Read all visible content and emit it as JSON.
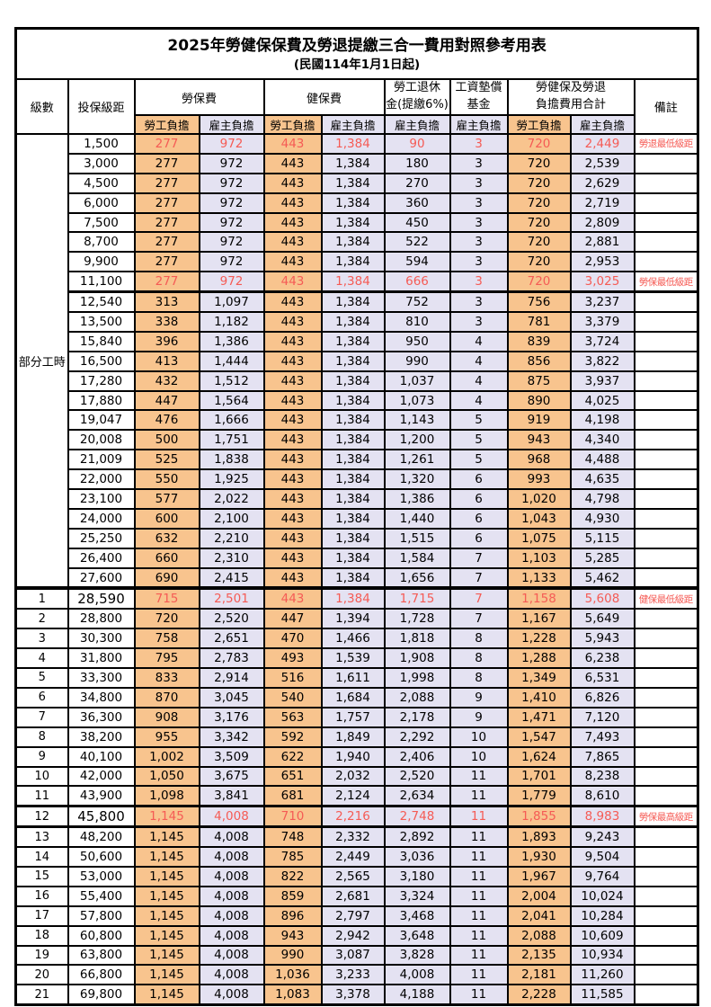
{
  "title": "2025年勞健保保費及勞退提繳三合一費用對照參考用表",
  "subtitle": "(民國114年1月1日起)",
  "colors": {
    "employee_column_bg": "#F8C48E",
    "employer_column_bg": "#E4E2F2",
    "highlight_red": "#F55B55",
    "border": "#000000"
  },
  "header": {
    "level": "級數",
    "bracket": "投保級距",
    "labor_insurance": "勞保費",
    "health_insurance": "健保費",
    "pension_line1": "勞工退休",
    "pension_line2": "金(提繳6%)",
    "wage_fund_line1": "工資墊償",
    "wage_fund_line2": "基金",
    "total_line1": "勞健保及勞退",
    "total_line2": "負擔費用合計",
    "remark": "備註",
    "employee": "勞工負擔",
    "employer": "雇主負擔"
  },
  "value_columns": [
    "labor-employee",
    "labor-employer",
    "health-employee",
    "health-employer",
    "pension-employer",
    "wage-fund-employer",
    "total-employee",
    "total-employer"
  ],
  "rows": [
    {
      "level": "部分工時",
      "levelSpan": 23,
      "bracket": "1,500",
      "v": [
        "277",
        "972",
        "443",
        "1,384",
        "90",
        "3",
        "720",
        "2,449"
      ],
      "remark": "勞退最低級距",
      "red": true
    },
    {
      "bracket": "3,000",
      "v": [
        "277",
        "972",
        "443",
        "1,384",
        "180",
        "3",
        "720",
        "2,539"
      ]
    },
    {
      "bracket": "4,500",
      "v": [
        "277",
        "972",
        "443",
        "1,384",
        "270",
        "3",
        "720",
        "2,629"
      ]
    },
    {
      "bracket": "6,000",
      "v": [
        "277",
        "972",
        "443",
        "1,384",
        "360",
        "3",
        "720",
        "2,719"
      ]
    },
    {
      "bracket": "7,500",
      "v": [
        "277",
        "972",
        "443",
        "1,384",
        "450",
        "3",
        "720",
        "2,809"
      ]
    },
    {
      "bracket": "8,700",
      "v": [
        "277",
        "972",
        "443",
        "1,384",
        "522",
        "3",
        "720",
        "2,881"
      ]
    },
    {
      "bracket": "9,900",
      "v": [
        "277",
        "972",
        "443",
        "1,384",
        "594",
        "3",
        "720",
        "2,953"
      ]
    },
    {
      "bracket": "11,100",
      "v": [
        "277",
        "972",
        "443",
        "1,384",
        "666",
        "3",
        "720",
        "3,025"
      ],
      "remark": "勞保最低級距",
      "red": true
    },
    {
      "bracket": "12,540",
      "v": [
        "313",
        "1,097",
        "443",
        "1,384",
        "752",
        "3",
        "756",
        "3,237"
      ],
      "thickTop": 3
    },
    {
      "bracket": "13,500",
      "v": [
        "338",
        "1,182",
        "443",
        "1,384",
        "810",
        "3",
        "781",
        "3,379"
      ]
    },
    {
      "bracket": "15,840",
      "v": [
        "396",
        "1,386",
        "443",
        "1,384",
        "950",
        "4",
        "839",
        "3,724"
      ]
    },
    {
      "bracket": "16,500",
      "v": [
        "413",
        "1,444",
        "443",
        "1,384",
        "990",
        "4",
        "856",
        "3,822"
      ]
    },
    {
      "bracket": "17,280",
      "v": [
        "432",
        "1,512",
        "443",
        "1,384",
        "1,037",
        "4",
        "875",
        "3,937"
      ]
    },
    {
      "bracket": "17,880",
      "v": [
        "447",
        "1,564",
        "443",
        "1,384",
        "1,073",
        "4",
        "890",
        "4,025"
      ]
    },
    {
      "bracket": "19,047",
      "v": [
        "476",
        "1,666",
        "443",
        "1,384",
        "1,143",
        "5",
        "919",
        "4,198"
      ]
    },
    {
      "bracket": "20,008",
      "v": [
        "500",
        "1,751",
        "443",
        "1,384",
        "1,200",
        "5",
        "943",
        "4,340"
      ]
    },
    {
      "bracket": "21,009",
      "v": [
        "525",
        "1,838",
        "443",
        "1,384",
        "1,261",
        "5",
        "968",
        "4,488"
      ]
    },
    {
      "bracket": "22,000",
      "v": [
        "550",
        "1,925",
        "443",
        "1,384",
        "1,320",
        "6",
        "993",
        "4,635"
      ]
    },
    {
      "bracket": "23,100",
      "v": [
        "577",
        "2,022",
        "443",
        "1,384",
        "1,386",
        "6",
        "1,020",
        "4,798"
      ]
    },
    {
      "bracket": "24,000",
      "v": [
        "600",
        "2,100",
        "443",
        "1,384",
        "1,440",
        "6",
        "1,043",
        "4,930"
      ]
    },
    {
      "bracket": "25,250",
      "v": [
        "632",
        "2,210",
        "443",
        "1,384",
        "1,515",
        "6",
        "1,075",
        "5,115"
      ]
    },
    {
      "bracket": "26,400",
      "v": [
        "660",
        "2,310",
        "443",
        "1,384",
        "1,584",
        "7",
        "1,103",
        "5,285"
      ]
    },
    {
      "bracket": "27,600",
      "v": [
        "690",
        "2,415",
        "443",
        "1,384",
        "1,656",
        "7",
        "1,133",
        "5,462"
      ]
    },
    {
      "level": "1",
      "bracket": "28,590",
      "v": [
        "715",
        "2,501",
        "443",
        "1,384",
        "1,715",
        "7",
        "1,158",
        "5,608"
      ],
      "remark": "健保最低級距",
      "red": true,
      "boldBracket": true,
      "thickTop": 4
    },
    {
      "level": "2",
      "bracket": "28,800",
      "v": [
        "720",
        "2,520",
        "447",
        "1,394",
        "1,728",
        "7",
        "1,167",
        "5,649"
      ]
    },
    {
      "level": "3",
      "bracket": "30,300",
      "v": [
        "758",
        "2,651",
        "470",
        "1,466",
        "1,818",
        "8",
        "1,228",
        "5,943"
      ]
    },
    {
      "level": "4",
      "bracket": "31,800",
      "v": [
        "795",
        "2,783",
        "493",
        "1,539",
        "1,908",
        "8",
        "1,288",
        "6,238"
      ]
    },
    {
      "level": "5",
      "bracket": "33,300",
      "v": [
        "833",
        "2,914",
        "516",
        "1,611",
        "1,998",
        "8",
        "1,349",
        "6,531"
      ]
    },
    {
      "level": "6",
      "bracket": "34,800",
      "v": [
        "870",
        "3,045",
        "540",
        "1,684",
        "2,088",
        "9",
        "1,410",
        "6,826"
      ]
    },
    {
      "level": "7",
      "bracket": "36,300",
      "v": [
        "908",
        "3,176",
        "563",
        "1,757",
        "2,178",
        "9",
        "1,471",
        "7,120"
      ]
    },
    {
      "level": "8",
      "bracket": "38,200",
      "v": [
        "955",
        "3,342",
        "592",
        "1,849",
        "2,292",
        "10",
        "1,547",
        "7,493"
      ]
    },
    {
      "level": "9",
      "bracket": "40,100",
      "v": [
        "1,002",
        "3,509",
        "622",
        "1,940",
        "2,406",
        "10",
        "1,624",
        "7,865"
      ]
    },
    {
      "level": "10",
      "bracket": "42,000",
      "v": [
        "1,050",
        "3,675",
        "651",
        "2,032",
        "2,520",
        "11",
        "1,701",
        "8,238"
      ]
    },
    {
      "level": "11",
      "bracket": "43,900",
      "v": [
        "1,098",
        "3,841",
        "681",
        "2,124",
        "2,634",
        "11",
        "1,779",
        "8,610"
      ]
    },
    {
      "level": "12",
      "bracket": "45,800",
      "v": [
        "1,145",
        "4,008",
        "710",
        "2,216",
        "2,748",
        "11",
        "1,855",
        "8,983"
      ],
      "remark": "勞保最高級距",
      "red": true,
      "boldBracket": true,
      "thickTop": 3
    },
    {
      "level": "13",
      "bracket": "48,200",
      "v": [
        "1,145",
        "4,008",
        "748",
        "2,332",
        "2,892",
        "11",
        "1,893",
        "9,243"
      ],
      "thickTop": 3
    },
    {
      "level": "14",
      "bracket": "50,600",
      "v": [
        "1,145",
        "4,008",
        "785",
        "2,449",
        "3,036",
        "11",
        "1,930",
        "9,504"
      ]
    },
    {
      "level": "15",
      "bracket": "53,000",
      "v": [
        "1,145",
        "4,008",
        "822",
        "2,565",
        "3,180",
        "11",
        "1,967",
        "9,764"
      ]
    },
    {
      "level": "16",
      "bracket": "55,400",
      "v": [
        "1,145",
        "4,008",
        "859",
        "2,681",
        "3,324",
        "11",
        "2,004",
        "10,024"
      ]
    },
    {
      "level": "17",
      "bracket": "57,800",
      "v": [
        "1,145",
        "4,008",
        "896",
        "2,797",
        "3,468",
        "11",
        "2,041",
        "10,284"
      ]
    },
    {
      "level": "18",
      "bracket": "60,800",
      "v": [
        "1,145",
        "4,008",
        "943",
        "2,942",
        "3,648",
        "11",
        "2,088",
        "10,609"
      ]
    },
    {
      "level": "19",
      "bracket": "63,800",
      "v": [
        "1,145",
        "4,008",
        "990",
        "3,087",
        "3,828",
        "11",
        "2,135",
        "10,934"
      ]
    },
    {
      "level": "20",
      "bracket": "66,800",
      "v": [
        "1,145",
        "4,008",
        "1,036",
        "3,233",
        "4,008",
        "11",
        "2,181",
        "11,260"
      ]
    },
    {
      "level": "21",
      "bracket": "69,800",
      "v": [
        "1,145",
        "4,008",
        "1,083",
        "3,378",
        "4,188",
        "11",
        "2,228",
        "11,585"
      ]
    }
  ]
}
